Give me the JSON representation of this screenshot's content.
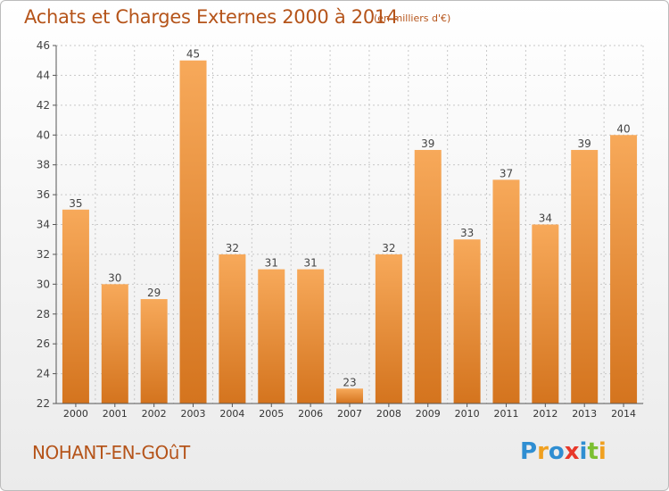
{
  "header": {
    "title": "Achats et Charges Externes 2000 à 2014",
    "subtitle": "(en milliers d'€)"
  },
  "footer": {
    "place": "NOHANT-EN-GOûT",
    "logo_letters": [
      "P",
      "r",
      "o",
      "x",
      "i",
      "t",
      "i"
    ],
    "logo_colors": [
      "#2f8ed2",
      "#f0a020",
      "#2f8ed2",
      "#e8382a",
      "#2f8ed2",
      "#7bbf31",
      "#f0a020"
    ]
  },
  "colors": {
    "bar_light": "#f7a95a",
    "bar_dark": "#d4741e",
    "grid": "#c8c8c8",
    "axis": "#555555"
  },
  "chart_data": {
    "type": "bar",
    "categories": [
      "2000",
      "2001",
      "2002",
      "2003",
      "2004",
      "2005",
      "2006",
      "2007",
      "2008",
      "2009",
      "2010",
      "2011",
      "2012",
      "2013",
      "2014"
    ],
    "values": [
      35,
      30,
      29,
      45,
      32,
      31,
      31,
      23,
      32,
      39,
      33,
      37,
      34,
      39,
      40
    ],
    "title": "Achats et Charges Externes 2000 à 2014",
    "ylim": [
      22,
      46
    ],
    "yticks": [
      22,
      24,
      26,
      28,
      30,
      32,
      34,
      36,
      38,
      40,
      42,
      44,
      46
    ],
    "grid": true,
    "legend": "none"
  }
}
